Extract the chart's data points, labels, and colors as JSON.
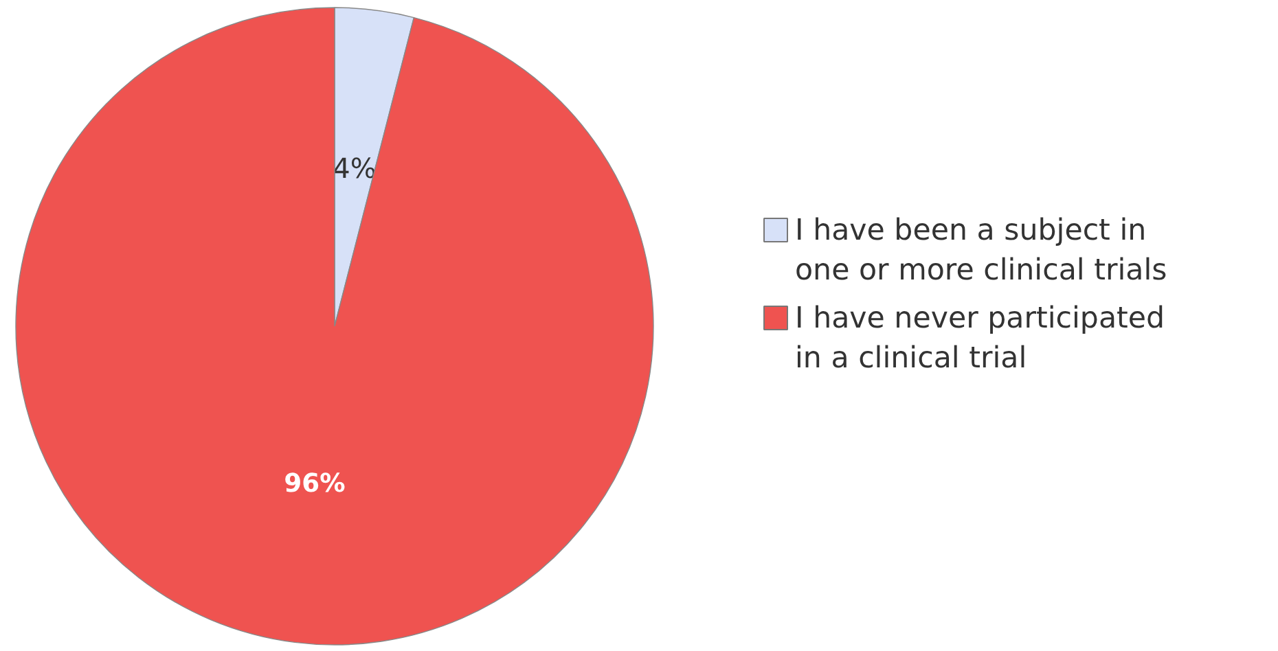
{
  "chart_data": {
    "type": "pie",
    "categories": [
      "I have been a subject in one or more clinical trials",
      "I have never participated in a clinical trial"
    ],
    "values": [
      4,
      96
    ],
    "colors": [
      "#d7e1f8",
      "#ef5350"
    ],
    "value_labels": [
      "4%",
      "96%"
    ],
    "legend": "right"
  }
}
